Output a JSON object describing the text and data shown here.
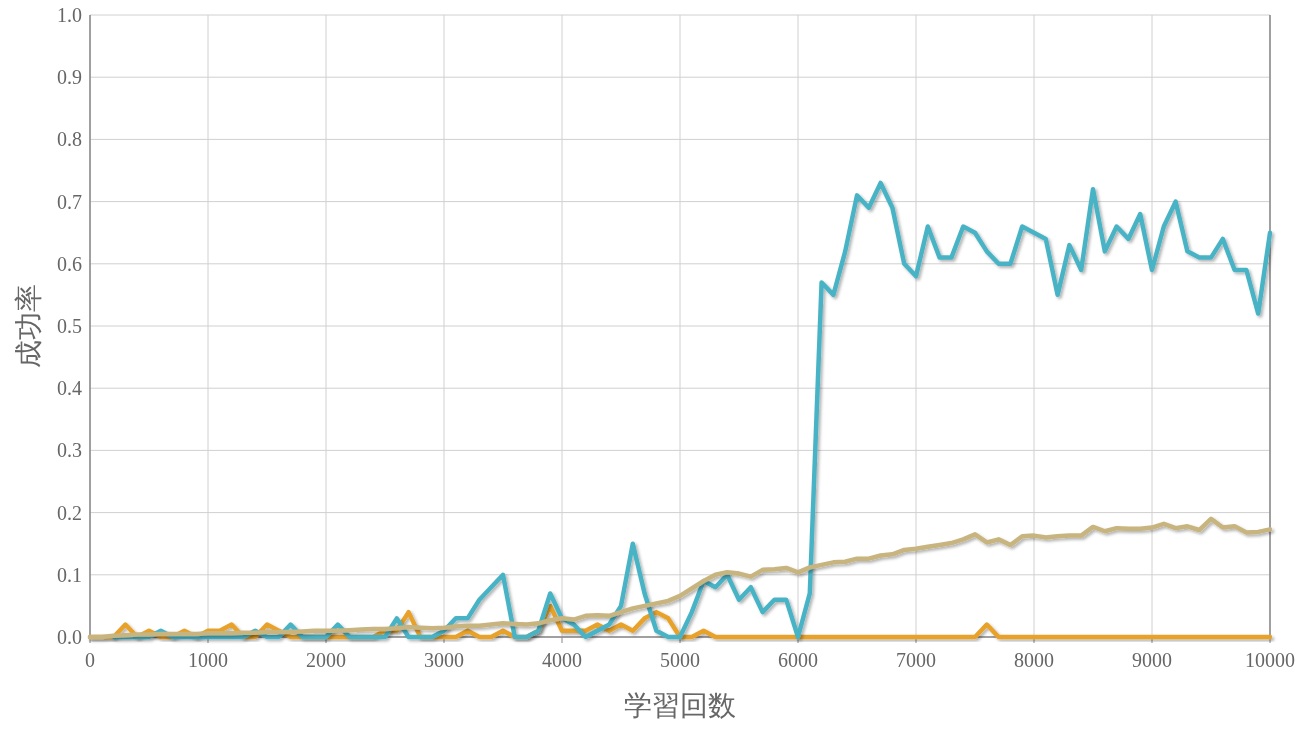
{
  "chart_data": {
    "type": "line",
    "xlabel": "学習回数",
    "ylabel": "成功率",
    "x": [
      0,
      100,
      200,
      300,
      400,
      500,
      600,
      700,
      800,
      900,
      1000,
      1100,
      1200,
      1300,
      1400,
      1500,
      1600,
      1700,
      1800,
      1900,
      2000,
      2100,
      2200,
      2300,
      2400,
      2500,
      2600,
      2700,
      2800,
      2900,
      3000,
      3100,
      3200,
      3300,
      3400,
      3500,
      3600,
      3700,
      3800,
      3900,
      4000,
      4100,
      4200,
      4300,
      4400,
      4500,
      4600,
      4700,
      4800,
      4900,
      5000,
      5100,
      5200,
      5300,
      5400,
      5500,
      5600,
      5700,
      5800,
      5900,
      6000,
      6100,
      6200,
      6300,
      6400,
      6500,
      6600,
      6700,
      6800,
      6900,
      7000,
      7100,
      7200,
      7300,
      7400,
      7500,
      7600,
      7700,
      7800,
      7900,
      8000,
      8100,
      8200,
      8300,
      8400,
      8500,
      8600,
      8700,
      8800,
      8900,
      9000,
      9100,
      9200,
      9300,
      9400,
      9500,
      9600,
      9700,
      9800,
      9900,
      10000
    ],
    "series": [
      {
        "color": "#e8a22c",
        "values": [
          0,
          0,
          0,
          0.02,
          0,
          0.01,
          0,
          0,
          0.01,
          0,
          0.01,
          0.01,
          0.02,
          0,
          0,
          0.02,
          0.01,
          0,
          0,
          0,
          0,
          0,
          0,
          0,
          0,
          0.01,
          0.01,
          0.04,
          0,
          0,
          0,
          0,
          0.01,
          0,
          0,
          0.01,
          0,
          0,
          0.01,
          0.05,
          0.01,
          0.01,
          0.01,
          0.02,
          0.01,
          0.02,
          0.01,
          0.03,
          0.04,
          0.03,
          0,
          0,
          0.01,
          0,
          0,
          0,
          0,
          0,
          0,
          0,
          0,
          0,
          0,
          0,
          0,
          0,
          0,
          0,
          0,
          0,
          0,
          0,
          0,
          0,
          0,
          0,
          0.02,
          0,
          0,
          0,
          0,
          0,
          0,
          0,
          0,
          0,
          0,
          0,
          0,
          0,
          0,
          0,
          0,
          0,
          0,
          0,
          0,
          0,
          0,
          0,
          0
        ]
      },
      {
        "color": "#4ab3c6",
        "values": [
          null,
          null,
          0,
          0,
          0,
          0,
          0.01,
          0,
          0,
          0,
          0,
          0,
          0,
          0,
          0.01,
          0,
          0,
          0.02,
          0,
          0,
          0,
          0.02,
          0,
          0,
          0,
          0,
          0.03,
          0,
          0,
          0,
          0.01,
          0.03,
          0.03,
          0.06,
          0.08,
          0.1,
          0,
          0,
          0.01,
          0.07,
          0.03,
          0.02,
          0,
          0.01,
          0.02,
          0.05,
          0.15,
          0.07,
          0.01,
          0,
          0,
          0.04,
          0.09,
          0.08,
          0.1,
          0.06,
          0.08,
          0.04,
          0.06,
          0.06,
          0,
          0.07,
          0.57,
          0.55,
          0.62,
          0.71,
          0.69,
          0.73,
          0.69,
          0.6,
          0.58,
          0.66,
          0.61,
          0.61,
          0.66,
          0.65,
          0.62,
          0.6,
          0.6,
          0.66,
          0.65,
          0.64,
          0.55,
          0.63,
          0.59,
          0.72,
          0.62,
          0.66,
          0.64,
          0.68,
          0.59,
          0.66,
          0.7,
          0.62,
          0.61,
          0.61,
          0.64,
          0.59,
          0.59,
          0.52,
          0.65
        ]
      },
      {
        "color": "#c8b47e",
        "values": [
          0,
          0,
          0.002,
          0.003,
          0.004,
          0.004,
          0.005,
          0.005,
          0.005,
          0.005,
          0.006,
          0.006,
          0.006,
          0.007,
          0.007,
          0.008,
          0.008,
          0.008,
          0.009,
          0.01,
          0.01,
          0.01,
          0.011,
          0.012,
          0.013,
          0.013,
          0.014,
          0.016,
          0.015,
          0.014,
          0.015,
          0.017,
          0.018,
          0.018,
          0.02,
          0.022,
          0.021,
          0.02,
          0.022,
          0.027,
          0.03,
          0.028,
          0.034,
          0.035,
          0.034,
          0.04,
          0.046,
          0.05,
          0.054,
          0.058,
          0.066,
          0.078,
          0.09,
          0.1,
          0.104,
          0.102,
          0.097,
          0.108,
          0.109,
          0.111,
          0.104,
          0.112,
          0.116,
          0.12,
          0.121,
          0.126,
          0.126,
          0.131,
          0.133,
          0.14,
          0.142,
          0.145,
          0.148,
          0.151,
          0.157,
          0.165,
          0.152,
          0.157,
          0.148,
          0.162,
          0.163,
          0.16,
          0.162,
          0.163,
          0.163,
          0.177,
          0.17,
          0.175,
          0.174,
          0.174,
          0.176,
          0.182,
          0.175,
          0.178,
          0.172,
          0.19,
          0.176,
          0.178,
          0.168,
          0.169,
          0.173
        ]
      }
    ],
    "xlim": [
      0,
      10000
    ],
    "xticks": [
      0,
      1000,
      2000,
      3000,
      4000,
      5000,
      6000,
      7000,
      8000,
      9000,
      10000
    ],
    "ylim": [
      0,
      1
    ],
    "yticks": [
      {
        "value": 0,
        "label": "0.0"
      },
      {
        "value": 0.1,
        "label": "0.1"
      },
      {
        "value": 0.2,
        "label": "0.2"
      },
      {
        "value": 0.3,
        "label": "0.3"
      },
      {
        "value": 0.4,
        "label": "0.4"
      },
      {
        "value": 0.5,
        "label": "0.5"
      },
      {
        "value": 0.6,
        "label": "0.6"
      },
      {
        "value": 0.7,
        "label": "0.7"
      },
      {
        "value": 0.8,
        "label": "0.8"
      },
      {
        "value": 0.9,
        "label": "0.9"
      },
      {
        "value": 1,
        "label": "1.0"
      }
    ],
    "grid": true,
    "marker": "none",
    "line_style": "solid"
  }
}
